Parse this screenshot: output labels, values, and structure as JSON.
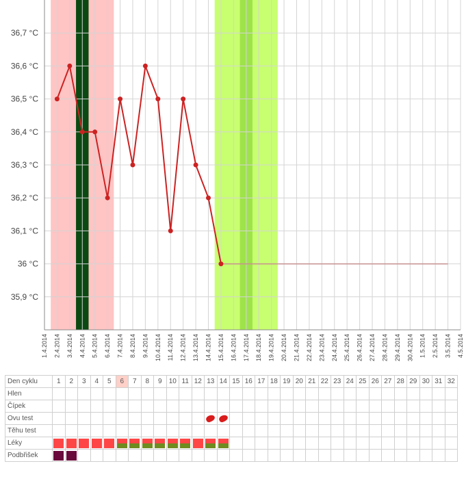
{
  "chart_data": {
    "type": "line",
    "x": [
      "1.4.2014",
      "2.4.2014",
      "3.4.2014",
      "4.4.2014",
      "5.4.2014",
      "6.4.2014",
      "7.4.2014",
      "8.4.2014",
      "9.4.2014",
      "10.4.2014",
      "11.4.2014",
      "12.4.2014",
      "13.4.2014",
      "14.4.2014",
      "15.4.2014",
      "16.4.2014",
      "17.4.2014",
      "18.4.2014",
      "19.4.2014",
      "20.4.2014",
      "21.4.2014",
      "22.4.2014",
      "23.4.2014",
      "24.4.2014",
      "25.4.2014",
      "26.4.2014",
      "27.4.2014",
      "28.4.2014",
      "29.4.2014",
      "30.4.2014",
      "1.5.2014",
      "2.5.2014",
      "3.5.2014",
      "4.5.2014"
    ],
    "series": [
      {
        "values": [
          null,
          36.5,
          36.6,
          36.4,
          36.4,
          36.2,
          36.5,
          36.3,
          36.6,
          36.5,
          36.1,
          36.5,
          36.3,
          36.2,
          36.0,
          null,
          null,
          null,
          null,
          null,
          null,
          null,
          null,
          null,
          null,
          null,
          null,
          null,
          null,
          null,
          null,
          null,
          null,
          null
        ],
        "color": "#cc2222"
      }
    ],
    "baseline": {
      "value": 36.0,
      "from": "15.4.2014",
      "to": "3.5.2014",
      "color": "#c89090"
    },
    "ylim": [
      35.8,
      36.8
    ],
    "ytick_labels": [
      "35,9 °C",
      "36 °C",
      "36,1 °C",
      "36,2 °C",
      "36,3 °C",
      "36,4 °C",
      "36,5 °C",
      "36,6 °C",
      "36,7 °C"
    ],
    "bands": [
      {
        "from": "2.4.2014",
        "to": "6.4.2014",
        "color": "#ffc4c4"
      },
      {
        "from": "4.4.2014",
        "to": "4.4.2014",
        "color": "#0a4a12"
      },
      {
        "from": "15.4.2014",
        "to": "19.4.2014",
        "color": "#c8ff70"
      },
      {
        "from": "17.4.2014",
        "to": "17.4.2014",
        "color": "#9ee34a"
      }
    ],
    "grid": true
  },
  "table": {
    "header_label": "Den cyklu",
    "days": [
      "1",
      "2",
      "3",
      "4",
      "5",
      "6",
      "7",
      "8",
      "9",
      "10",
      "11",
      "12",
      "13",
      "14",
      "15",
      "16",
      "17",
      "18",
      "19",
      "20",
      "21",
      "22",
      "23",
      "24",
      "25",
      "26",
      "27",
      "28",
      "29",
      "30",
      "31",
      "32"
    ],
    "highlight_day": "6",
    "rows": [
      {
        "label": "Hlen",
        "marks": []
      },
      {
        "label": "Čípek",
        "marks": []
      },
      {
        "label": "Ovu test",
        "marks": [
          "13",
          "14"
        ]
      },
      {
        "label": "Těhu test",
        "marks": []
      },
      {
        "label": "Léky",
        "red": [
          "1",
          "2",
          "3",
          "4",
          "5",
          "12"
        ],
        "split": [
          "6",
          "7",
          "8",
          "9",
          "10",
          "11",
          "13",
          "14"
        ]
      },
      {
        "label": "Podbřišek",
        "marks": [
          "1",
          "2"
        ]
      }
    ]
  }
}
